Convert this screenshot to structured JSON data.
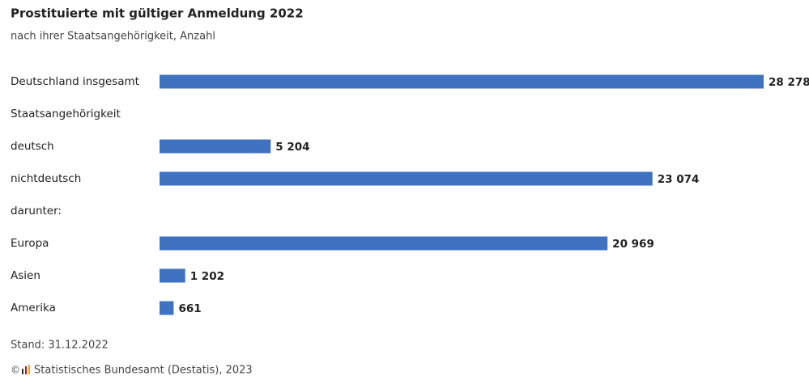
{
  "chart_data": {
    "type": "bar",
    "orientation": "horizontal",
    "title": "Prostituierte mit gültiger Anmeldung 2022",
    "subtitle": "nach ihrer Staatsangehörigkeit, Anzahl",
    "categories": [
      "Deutschland insgesamt",
      "Staatsangehörigkeit",
      "deutsch",
      "nichtdeutsch",
      "darunter:",
      "Europa",
      "Asien",
      "Amerika"
    ],
    "values": [
      28278,
      null,
      5204,
      23074,
      null,
      20969,
      1202,
      661
    ],
    "value_labels": [
      "28 278",
      null,
      "5 204",
      "23 074",
      null,
      "20 969",
      "1 202",
      "661"
    ],
    "color": "#3f73c1",
    "note": "Stand: 31.12.2022",
    "copyright": "©",
    "source": "Statistisches Bundesamt (Destatis), 2023"
  }
}
